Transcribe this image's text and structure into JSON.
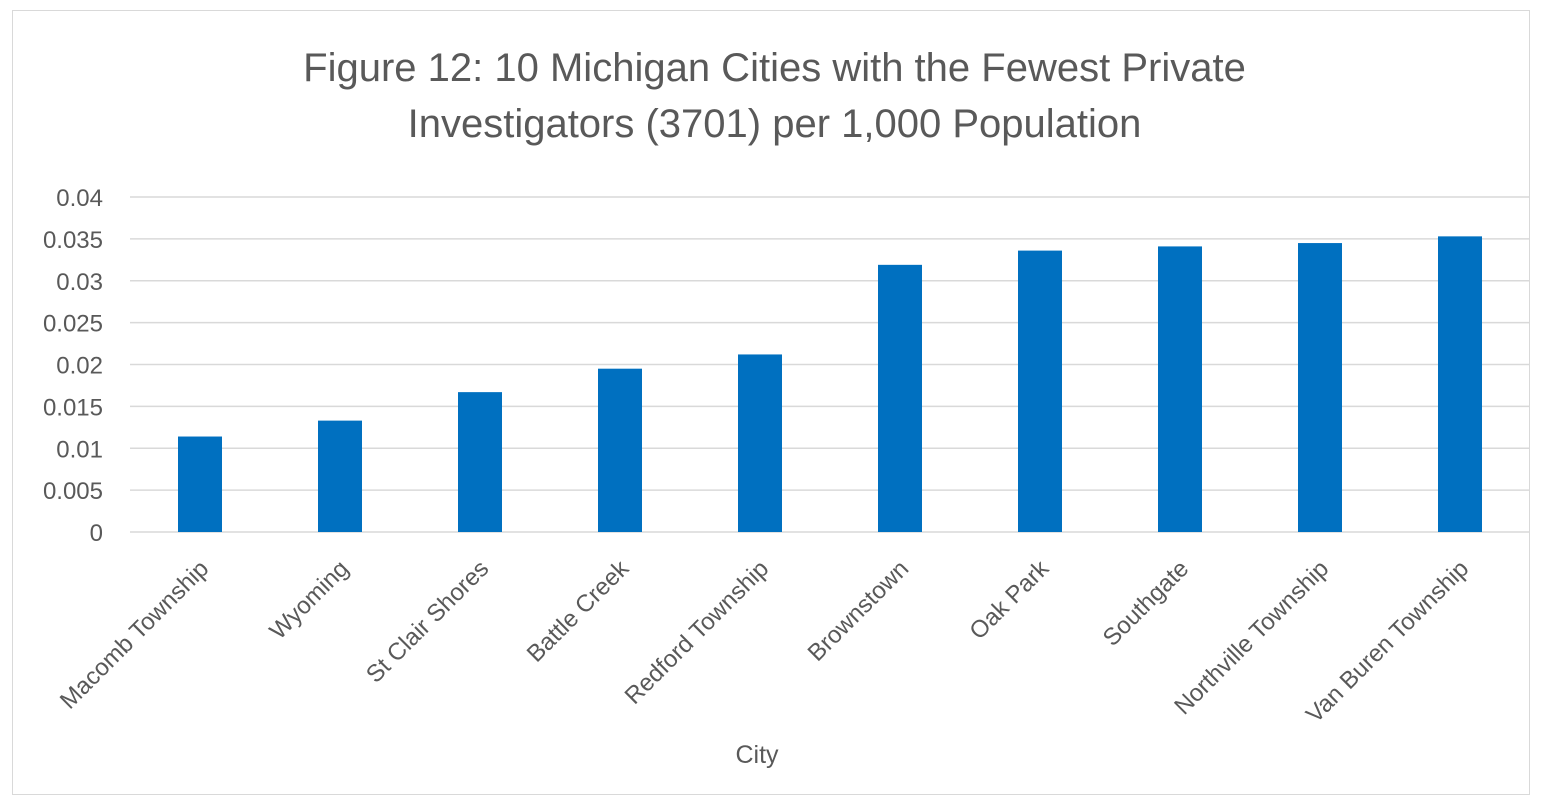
{
  "chart_data": {
    "type": "bar",
    "title": "Figure 12: 10 Michigan Cities with the Fewest Private Investigators (3701) per 1,000 Population",
    "title_lines": [
      "Figure 12: 10 Michigan Cities with the Fewest Private",
      "Investigators (3701) per 1,000 Population"
    ],
    "xlabel": "City",
    "ylabel": "",
    "categories": [
      "Macomb Township",
      "Wyoming",
      "St Clair Shores",
      "Battle Creek",
      "Redford Township",
      "Brownstown",
      "Oak Park",
      "Southgate",
      "Northville Township",
      "Van Buren Township"
    ],
    "values": [
      0.0114,
      0.0133,
      0.0167,
      0.0195,
      0.0212,
      0.0319,
      0.0336,
      0.0341,
      0.0345,
      0.0353
    ],
    "ylim": [
      0,
      0.04
    ],
    "yticks": [
      "0",
      "0.005",
      "0.01",
      "0.015",
      "0.02",
      "0.025",
      "0.03",
      "0.035",
      "0.04"
    ],
    "grid": true,
    "legend": "none",
    "bar_color": "#0070C0",
    "grid_color": "#d9d9d9",
    "text_color": "#595959"
  }
}
